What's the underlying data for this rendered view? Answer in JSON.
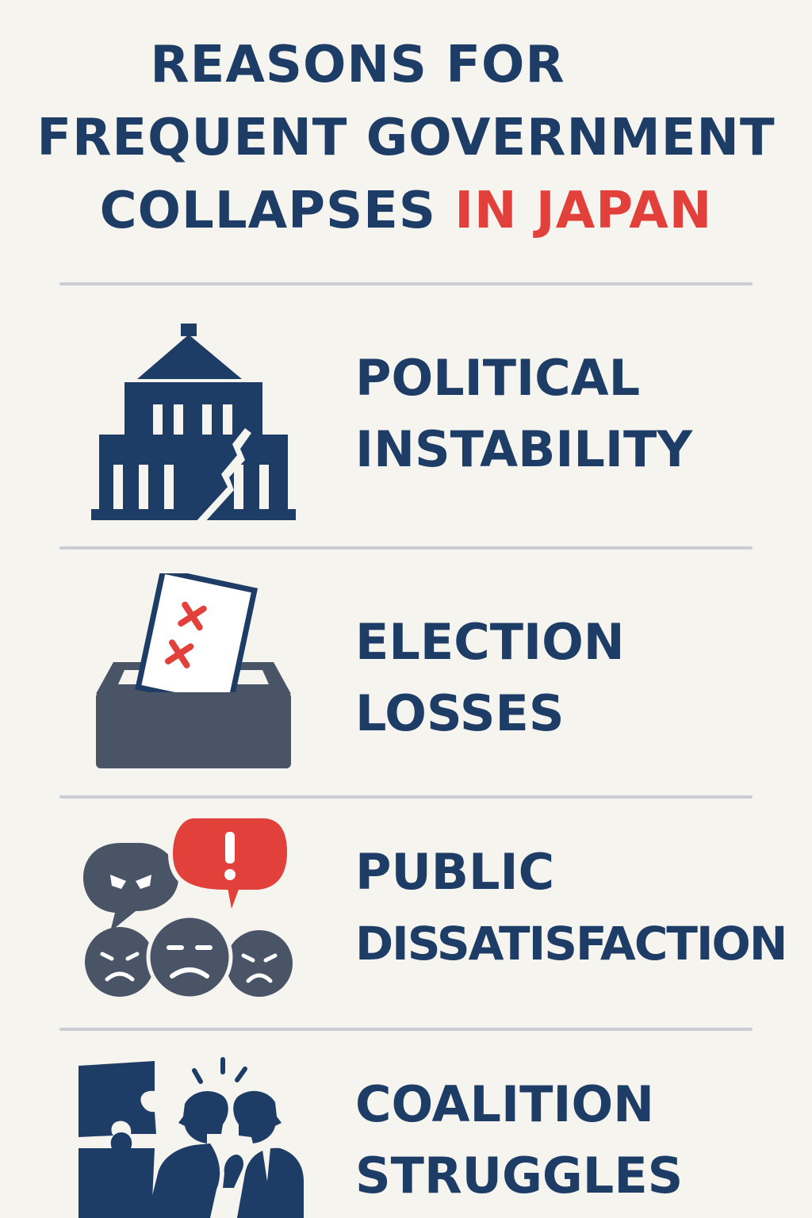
{
  "title": {
    "line1": "REASONS FOR",
    "line2": "FREQUENT GOVERNMENT",
    "line3_main": "COLLAPSES",
    "line3_accent": "IN JAPAN"
  },
  "colors": {
    "navy": "#1e3d66",
    "accent_red": "#e2403b",
    "slate": "#495567",
    "divider": "#c9cdd3",
    "background": "#f6f4ef"
  },
  "reasons": [
    {
      "icon": "cracked-government-building-icon",
      "line1": "POLITICAL",
      "line2": "INSTABILITY"
    },
    {
      "icon": "ballot-box-icon",
      "line1": "ELECTION",
      "line2": "LOSSES"
    },
    {
      "icon": "unhappy-crowd-speech-bubbles-icon",
      "line1": "PUBLIC",
      "line2": "DISSATISFACTION"
    },
    {
      "icon": "arguing-politicians-puzzle-icon",
      "line1": "COALITION",
      "line2": "STRUGGLES"
    }
  ]
}
